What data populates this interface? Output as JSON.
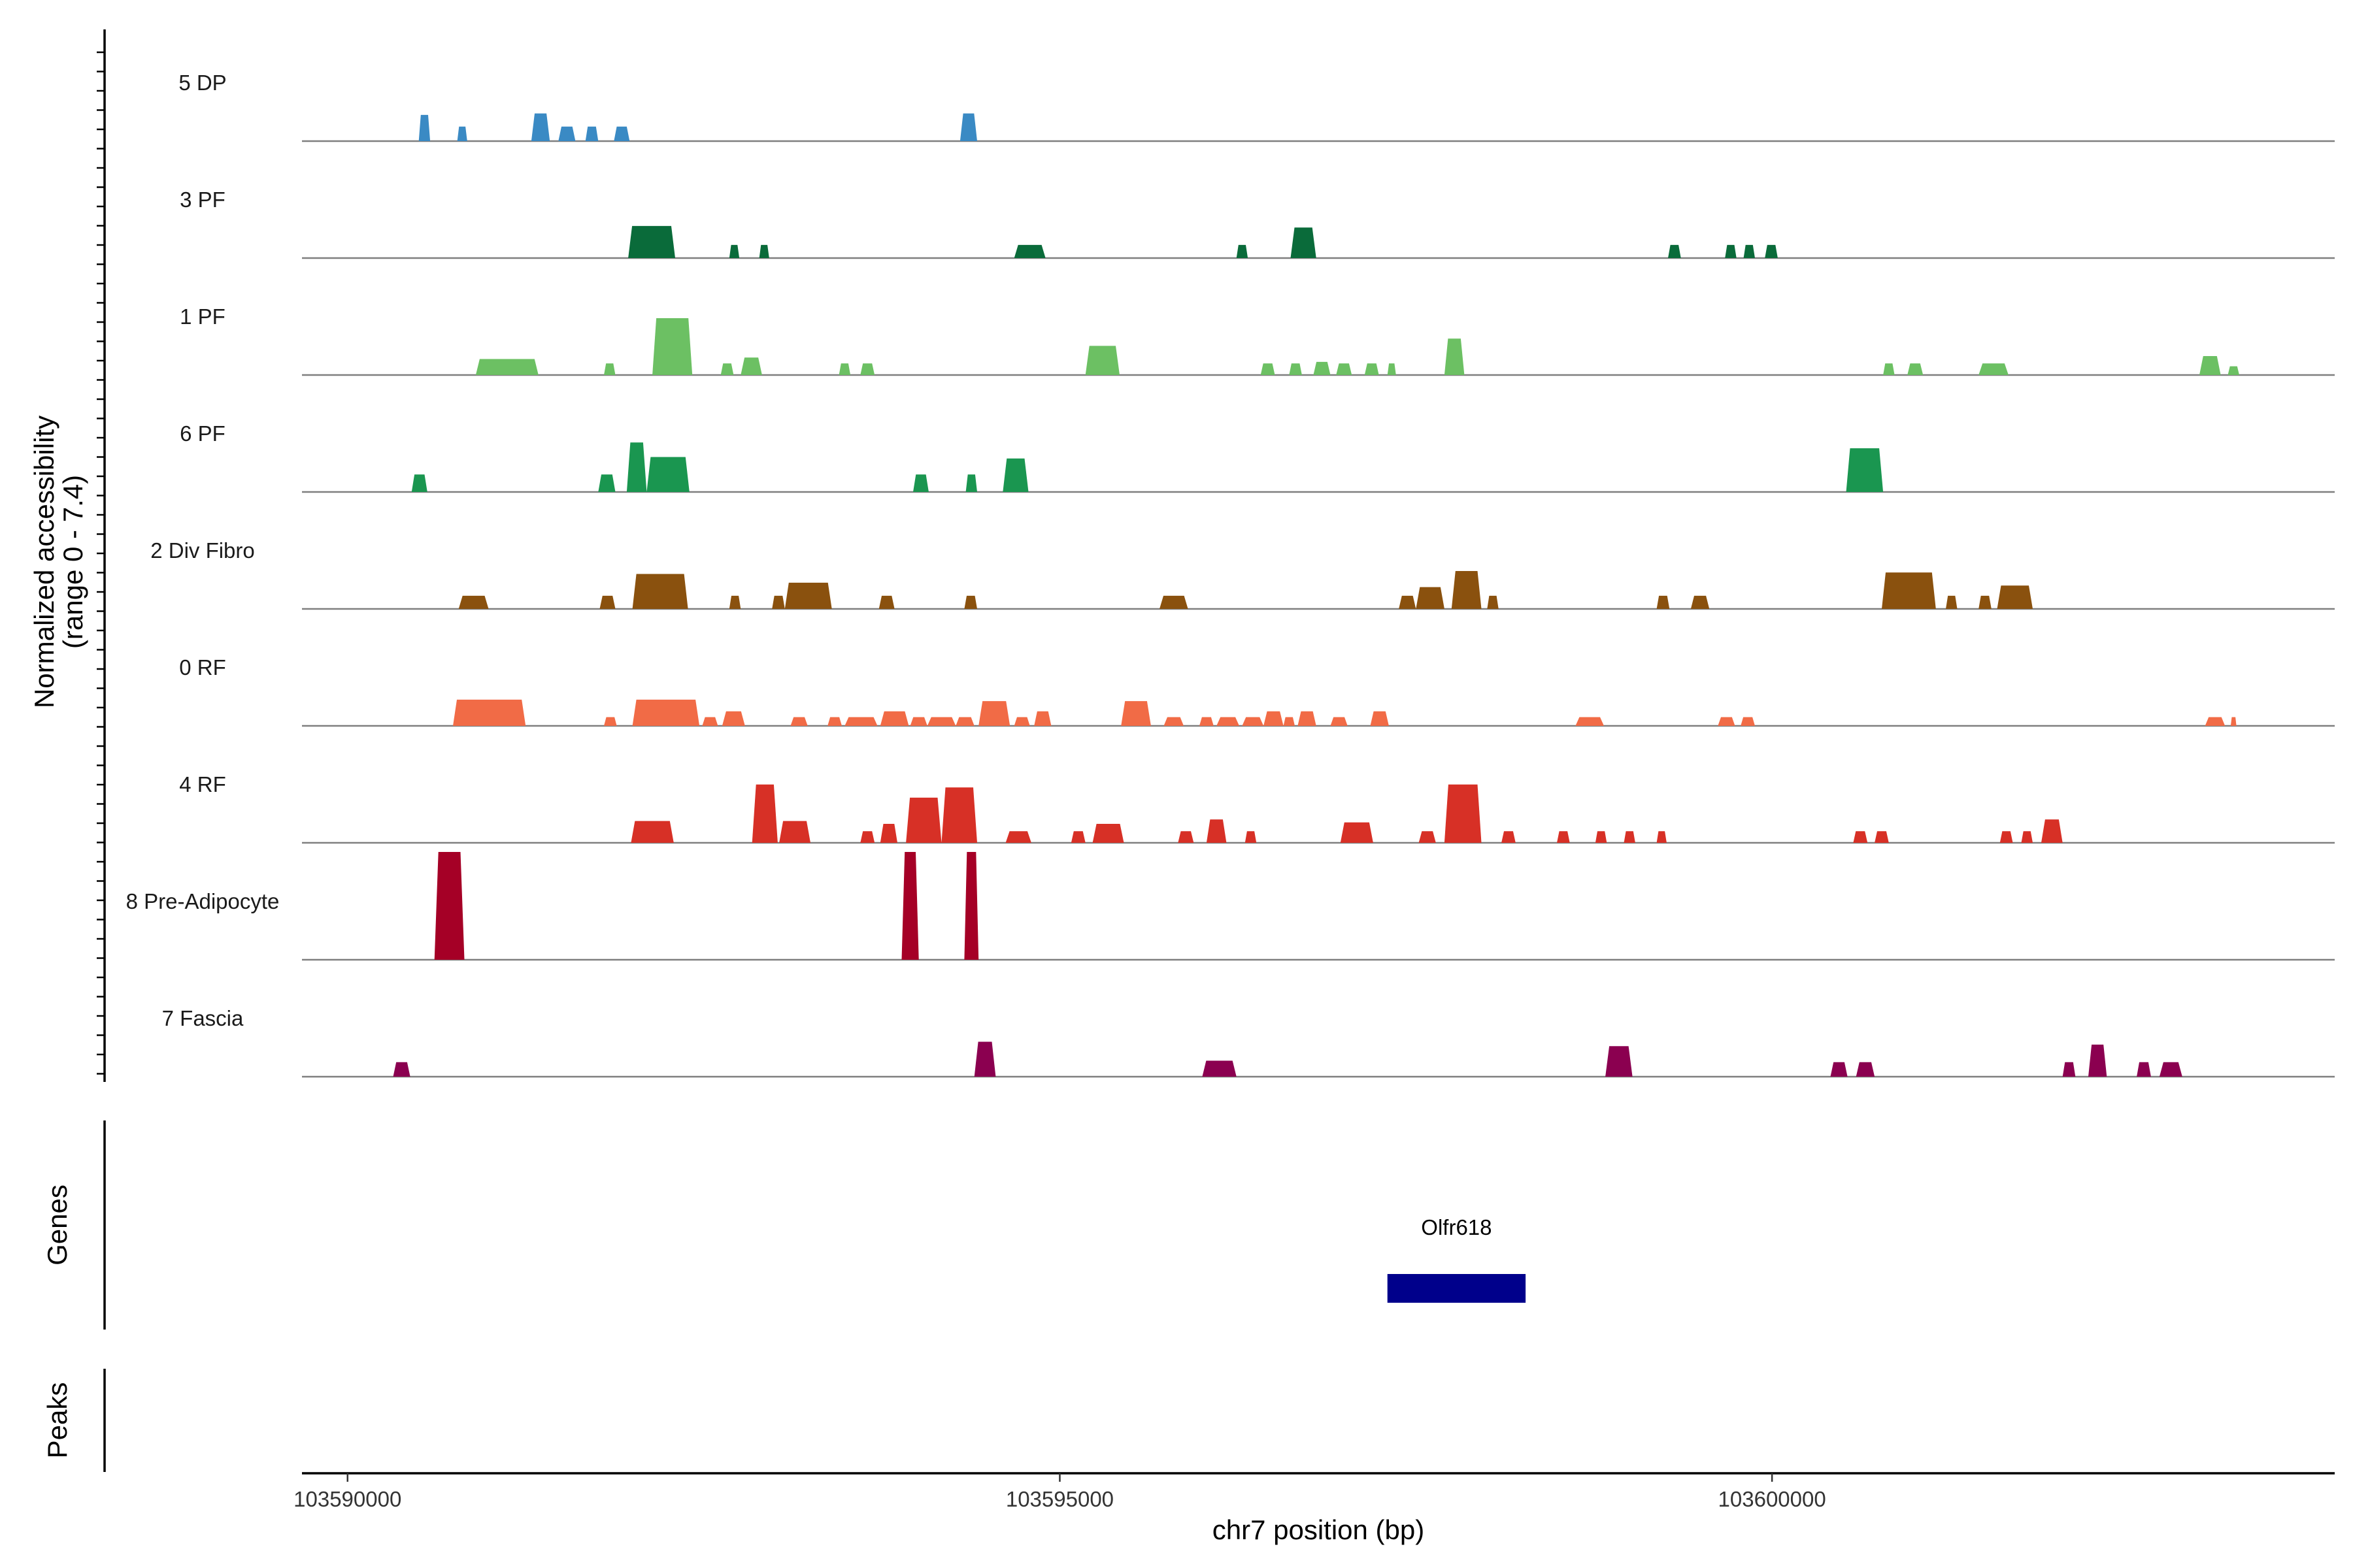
{
  "chart_data": {
    "type": "area",
    "chromosome": "chr7",
    "x_title": "chr7 position (bp)",
    "y_title_line1": "Normalized accessibility",
    "y_title_line2": "(range 0 - 7.4)",
    "y_range": [
      0,
      7.4
    ],
    "x_range": [
      103589680,
      103603950
    ],
    "x_ticks": [
      {
        "value": 103590000,
        "label": "103590000"
      },
      {
        "value": 103595000,
        "label": "103595000"
      },
      {
        "value": 103600000,
        "label": "103600000"
      }
    ],
    "tracks": [
      {
        "name": "5 DP",
        "color": "#3a8ac4",
        "peaks": [
          [
            103590500,
            103590580,
            1.8
          ],
          [
            103590770,
            103590840,
            1.0
          ],
          [
            103591290,
            103591420,
            1.9
          ],
          [
            103591480,
            103591600,
            1.0
          ],
          [
            103591670,
            103591760,
            1.0
          ],
          [
            103591870,
            103591980,
            1.0
          ],
          [
            103594300,
            103594420,
            1.9
          ]
        ]
      },
      {
        "name": "3 PF",
        "color": "#0a6b3a",
        "peaks": [
          [
            103591970,
            103592300,
            2.2
          ],
          [
            103592680,
            103592750,
            0.9
          ],
          [
            103592890,
            103592960,
            0.9
          ],
          [
            103594680,
            103594900,
            0.9
          ],
          [
            103596240,
            103596320,
            0.9
          ],
          [
            103596620,
            103596800,
            2.1
          ],
          [
            103599270,
            103599360,
            0.9
          ],
          [
            103599670,
            103599750,
            0.9
          ],
          [
            103599800,
            103599880,
            0.9
          ],
          [
            103599950,
            103600040,
            0.9
          ]
        ]
      },
      {
        "name": "1 PF",
        "color": "#6cc063",
        "peaks": [
          [
            103590900,
            103591340,
            1.1
          ],
          [
            103591800,
            103591880,
            0.8
          ],
          [
            103592140,
            103592420,
            3.9
          ],
          [
            103592620,
            103592710,
            0.8
          ],
          [
            103592760,
            103592910,
            1.2
          ],
          [
            103593450,
            103593530,
            0.8
          ],
          [
            103593600,
            103593700,
            0.8
          ],
          [
            103595180,
            103595420,
            2.0
          ],
          [
            103596410,
            103596510,
            0.8
          ],
          [
            103596610,
            103596700,
            0.8
          ],
          [
            103596780,
            103596900,
            0.9
          ],
          [
            103596940,
            103597050,
            0.8
          ],
          [
            103597140,
            103597240,
            0.8
          ],
          [
            103597300,
            103597360,
            0.8
          ],
          [
            103597700,
            103597840,
            2.5
          ],
          [
            103600780,
            103600860,
            0.8
          ],
          [
            103600950,
            103601060,
            0.8
          ],
          [
            103601450,
            103601660,
            0.8
          ],
          [
            103603000,
            103603150,
            1.3
          ],
          [
            103603200,
            103603280,
            0.6
          ]
        ]
      },
      {
        "name": "6 PF",
        "color": "#1a9650",
        "peaks": [
          [
            103590450,
            103590560,
            1.2
          ],
          [
            103591760,
            103591880,
            1.2
          ],
          [
            103591960,
            103592100,
            3.4
          ],
          [
            103592100,
            103592400,
            2.4
          ],
          [
            103593970,
            103594080,
            1.2
          ],
          [
            103594340,
            103594420,
            1.2
          ],
          [
            103594600,
            103594780,
            2.3
          ],
          [
            103600520,
            103600780,
            3.0
          ]
        ]
      },
      {
        "name": "2 Div Fibro",
        "color": "#8a510e",
        "peaks": [
          [
            103590780,
            103590990,
            0.9
          ],
          [
            103591770,
            103591880,
            0.9
          ],
          [
            103592000,
            103592390,
            2.4
          ],
          [
            103592680,
            103592760,
            0.9
          ],
          [
            103592980,
            103593070,
            0.9
          ],
          [
            103593070,
            103593400,
            1.8
          ],
          [
            103593730,
            103593840,
            0.9
          ],
          [
            103594330,
            103594420,
            0.9
          ],
          [
            103595700,
            103595900,
            0.9
          ],
          [
            103597380,
            103597500,
            0.9
          ],
          [
            103597500,
            103597700,
            1.5
          ],
          [
            103597750,
            103597960,
            2.6
          ],
          [
            103598000,
            103598080,
            0.9
          ],
          [
            103599190,
            103599280,
            0.9
          ],
          [
            103599430,
            103599560,
            0.9
          ],
          [
            103600770,
            103601150,
            2.5
          ],
          [
            103601220,
            103601300,
            0.9
          ],
          [
            103601450,
            103601540,
            0.9
          ],
          [
            103601580,
            103601830,
            1.6
          ]
        ]
      },
      {
        "name": "0 RF",
        "color": "#f16b46",
        "peaks": [
          [
            103590740,
            103591250,
            1.8
          ],
          [
            103591800,
            103591890,
            0.6
          ],
          [
            103592000,
            103592470,
            1.8
          ],
          [
            103592490,
            103592600,
            0.6
          ],
          [
            103592630,
            103592790,
            1.0
          ],
          [
            103593110,
            103593230,
            0.6
          ],
          [
            103593370,
            103593470,
            0.6
          ],
          [
            103593490,
            103593720,
            0.6
          ],
          [
            103593740,
            103593940,
            1.0
          ],
          [
            103593950,
            103594070,
            0.6
          ],
          [
            103594070,
            103594270,
            0.6
          ],
          [
            103594270,
            103594400,
            0.6
          ],
          [
            103594430,
            103594650,
            1.7
          ],
          [
            103594680,
            103594790,
            0.6
          ],
          [
            103594820,
            103594940,
            1.0
          ],
          [
            103595430,
            103595640,
            1.7
          ],
          [
            103595730,
            103595870,
            0.6
          ],
          [
            103595980,
            103596080,
            0.6
          ],
          [
            103596100,
            103596260,
            0.6
          ],
          [
            103596280,
            103596430,
            0.6
          ],
          [
            103596430,
            103596570,
            1.0
          ],
          [
            103596570,
            103596650,
            0.6
          ],
          [
            103596670,
            103596800,
            1.0
          ],
          [
            103596900,
            103597020,
            0.6
          ],
          [
            103597180,
            103597310,
            1.0
          ],
          [
            103598620,
            103598820,
            0.6
          ],
          [
            103599620,
            103599740,
            0.6
          ],
          [
            103599780,
            103599880,
            0.6
          ],
          [
            103603040,
            103603180,
            0.6
          ],
          [
            103603220,
            103603260,
            0.6
          ]
        ]
      },
      {
        "name": "4 RF",
        "color": "#d73026",
        "peaks": [
          [
            103591990,
            103592290,
            1.5
          ],
          [
            103592840,
            103593020,
            4.0
          ],
          [
            103593030,
            103593250,
            1.5
          ],
          [
            103593600,
            103593700,
            0.8
          ],
          [
            103593740,
            103593860,
            1.3
          ],
          [
            103593920,
            103594170,
            3.1
          ],
          [
            103594170,
            103594420,
            3.8
          ],
          [
            103594620,
            103594800,
            0.8
          ],
          [
            103595080,
            103595180,
            0.8
          ],
          [
            103595230,
            103595450,
            1.3
          ],
          [
            103595830,
            103595940,
            0.8
          ],
          [
            103596030,
            103596170,
            1.6
          ],
          [
            103596300,
            103596380,
            0.8
          ],
          [
            103596970,
            103597200,
            1.4
          ],
          [
            103597520,
            103597640,
            0.8
          ],
          [
            103597700,
            103597960,
            4.0
          ],
          [
            103598100,
            103598200,
            0.8
          ],
          [
            103598490,
            103598580,
            0.8
          ],
          [
            103598760,
            103598840,
            0.8
          ],
          [
            103598960,
            103599040,
            0.8
          ],
          [
            103599190,
            103599260,
            0.8
          ],
          [
            103600570,
            103600670,
            0.8
          ],
          [
            103600720,
            103600820,
            0.8
          ],
          [
            103601600,
            103601690,
            0.8
          ],
          [
            103601750,
            103601830,
            0.8
          ],
          [
            103601890,
            103602040,
            1.6
          ]
        ]
      },
      {
        "name": "8 Pre-Adipocyte",
        "color": "#a50026",
        "peaks": [
          [
            103590610,
            103590820,
            7.4
          ],
          [
            103593890,
            103594010,
            7.4
          ],
          [
            103594330,
            103594430,
            7.4
          ]
        ]
      },
      {
        "name": "7 Fascia",
        "color": "#8b0050",
        "peaks": [
          [
            103590320,
            103590440,
            1.0
          ],
          [
            103594400,
            103594550,
            2.4
          ],
          [
            103596000,
            103596240,
            1.1
          ],
          [
            103598830,
            103599020,
            2.1
          ],
          [
            103600410,
            103600530,
            1.0
          ],
          [
            103600590,
            103600720,
            1.0
          ],
          [
            103602040,
            103602130,
            1.0
          ],
          [
            103602220,
            103602350,
            2.2
          ],
          [
            103602560,
            103602660,
            1.0
          ],
          [
            103602720,
            103602880,
            1.0
          ]
        ]
      }
    ],
    "genes_panel_title": "Genes",
    "genes": [
      {
        "name": "Olfr618",
        "start": 103597300,
        "end": 103598270,
        "color": "#00008b"
      }
    ],
    "peaks_panel_title": "Peaks"
  }
}
